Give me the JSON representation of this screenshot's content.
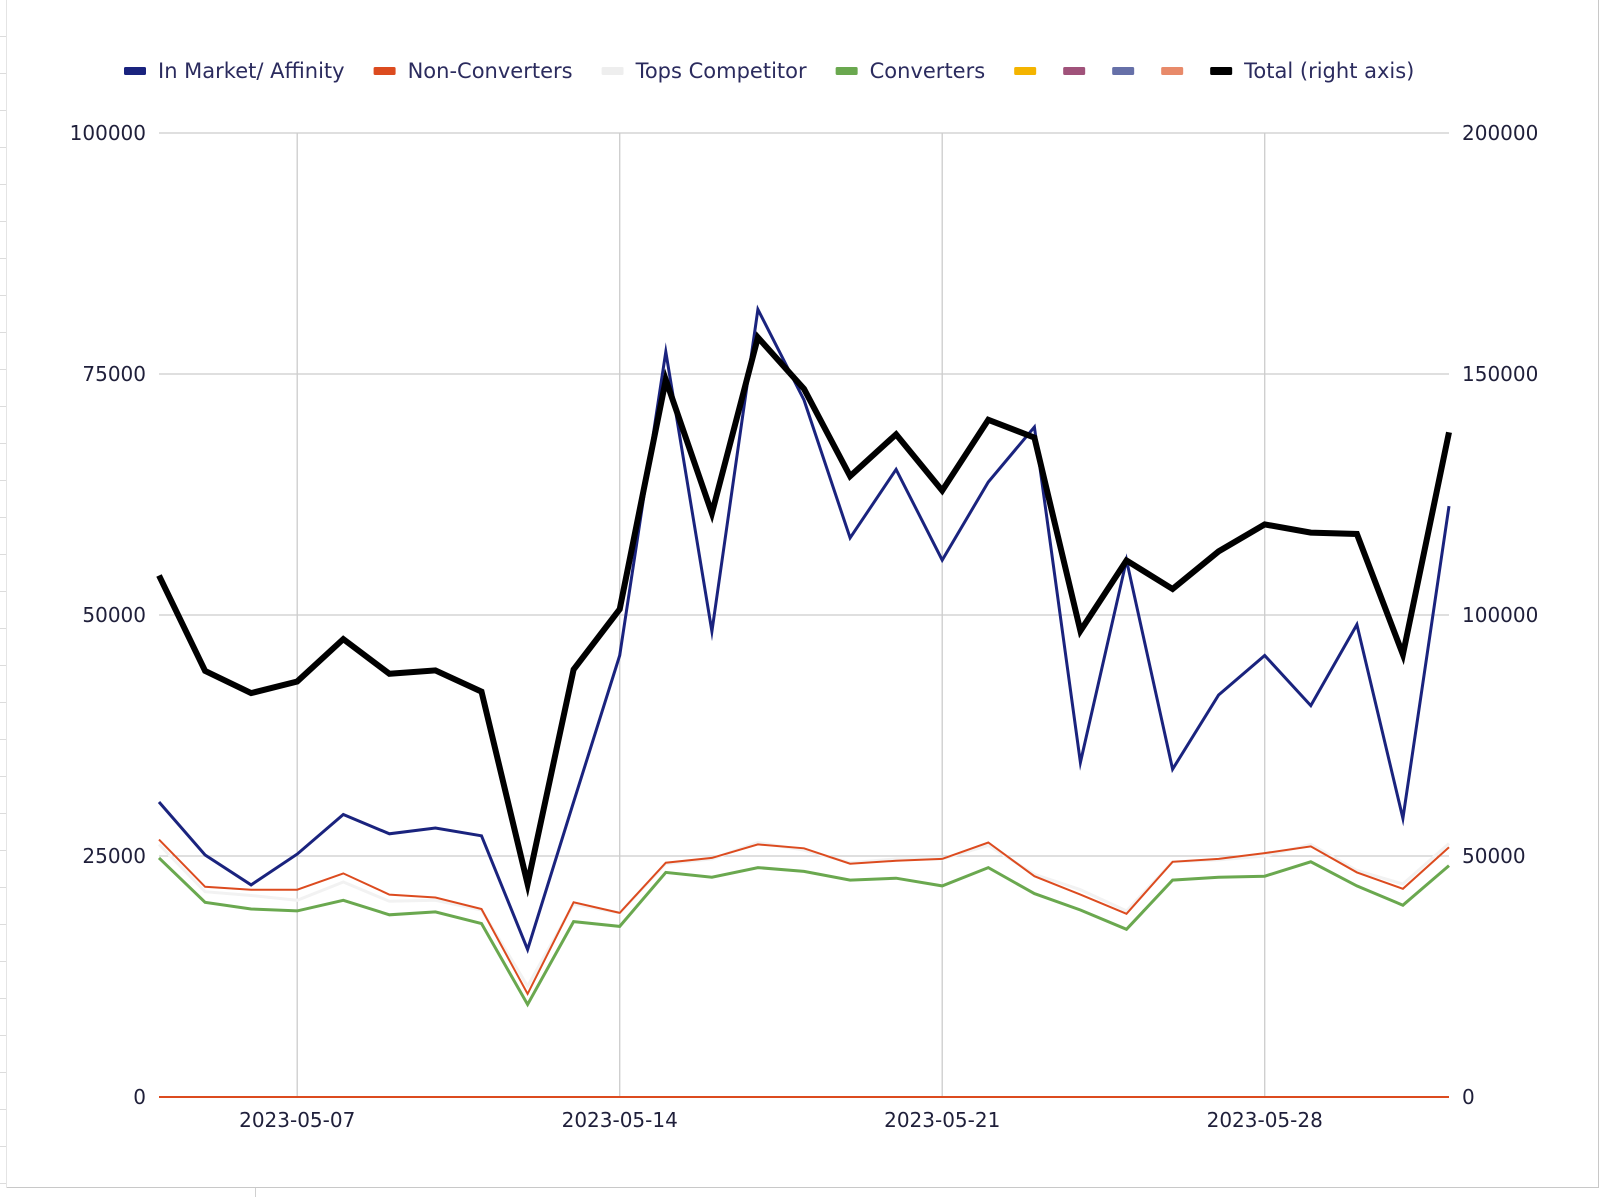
{
  "chart_data": {
    "type": "line",
    "title": "",
    "xlabel": "",
    "ylabel": "",
    "ylim": [
      0,
      100000
    ],
    "y2lim": [
      0,
      200000
    ],
    "y_ticks": [
      "0",
      "25000",
      "50000",
      "75000",
      "100000"
    ],
    "y2_ticks": [
      "0",
      "50000",
      "100000",
      "150000",
      "200000"
    ],
    "x_ticks": [
      "2023-05-07",
      "2023-05-14",
      "2023-05-21",
      "2023-05-28"
    ],
    "x_tick_index": [
      3,
      10,
      17,
      24
    ],
    "grid": true,
    "legend_position": "top",
    "categories": [
      "2023-05-04",
      "2023-05-05",
      "2023-05-06",
      "2023-05-07",
      "2023-05-08",
      "2023-05-09",
      "2023-05-10",
      "2023-05-11",
      "2023-05-12",
      "2023-05-13",
      "2023-05-14",
      "2023-05-15",
      "2023-05-16",
      "2023-05-17",
      "2023-05-18",
      "2023-05-19",
      "2023-05-20",
      "2023-05-21",
      "2023-05-22",
      "2023-05-23",
      "2023-05-24",
      "2023-05-25",
      "2023-05-26",
      "2023-05-27",
      "2023-05-28",
      "2023-05-29",
      "2023-05-30",
      "2023-05-31",
      "2023-06-01"
    ],
    "series": [
      {
        "name": "Tops Competitor",
        "axis": "left",
        "color": "#f2f2f2",
        "width": 3,
        "values": [
          26200,
          21300,
          20900,
          20400,
          22300,
          20300,
          20400,
          19400,
          11500,
          20000,
          19100,
          24200,
          24700,
          26400,
          25600,
          24300,
          24700,
          24700,
          26100,
          23100,
          21500,
          19300,
          24400,
          24600,
          25000,
          26200,
          23500,
          22100,
          26300
        ]
      },
      {
        "name": "Non-Converters",
        "axis": "left",
        "color": "#dc4b1f",
        "width": 2,
        "values": [
          26700,
          21800,
          21500,
          21500,
          23200,
          21000,
          20700,
          19500,
          10700,
          20200,
          19100,
          24300,
          24800,
          26200,
          25800,
          24200,
          24500,
          24700,
          26400,
          22900,
          21000,
          19000,
          24400,
          24700,
          25300,
          26000,
          23300,
          21600,
          25900
        ]
      },
      {
        "name": "Converters",
        "axis": "left",
        "color": "#6aa84f",
        "width": 3,
        "values": [
          24800,
          20200,
          19500,
          19300,
          20400,
          18900,
          19200,
          18000,
          9600,
          18200,
          17700,
          23300,
          22800,
          23800,
          23400,
          22500,
          22700,
          21900,
          23800,
          21100,
          19400,
          17400,
          22500,
          22800,
          22900,
          24400,
          21900,
          19900,
          24000
        ]
      },
      {
        "name": "In Market/ Affinity",
        "axis": "left",
        "color": "#1a237e",
        "width": 3,
        "values": [
          30600,
          25100,
          22000,
          25200,
          29300,
          27300,
          27900,
          27100,
          15300,
          30600,
          45800,
          77300,
          48300,
          81700,
          72300,
          58000,
          65100,
          55700,
          63800,
          69500,
          34700,
          55700,
          34000,
          41700,
          45800,
          40600,
          49000,
          28900,
          61300
        ]
      },
      {
        "name": "Total (right axis)",
        "axis": "right",
        "color": "#000000",
        "width": 6,
        "values": [
          108200,
          88400,
          83800,
          86200,
          95000,
          87800,
          88500,
          84100,
          44200,
          88700,
          101200,
          148800,
          121100,
          157600,
          146900,
          128800,
          137500,
          125800,
          140500,
          136800,
          96700,
          111300,
          105400,
          113200,
          118800,
          117100,
          116800,
          91800,
          137900
        ]
      }
    ],
    "legend": [
      {
        "name": "In Market/ Affinity",
        "color": "#1a237e"
      },
      {
        "name": "Non-Converters",
        "color": "#dc4b1f"
      },
      {
        "name": "Tops Competitor",
        "color": "#eeeeee"
      },
      {
        "name": "Converters",
        "color": "#6aa84f"
      },
      {
        "name": "",
        "color": "#f4b400"
      },
      {
        "name": "",
        "color": "#a0527a"
      },
      {
        "name": "",
        "color": "#6670a8"
      },
      {
        "name": "",
        "color": "#e88a6a"
      },
      {
        "name": "Total (right axis)",
        "color": "#000000"
      }
    ]
  }
}
